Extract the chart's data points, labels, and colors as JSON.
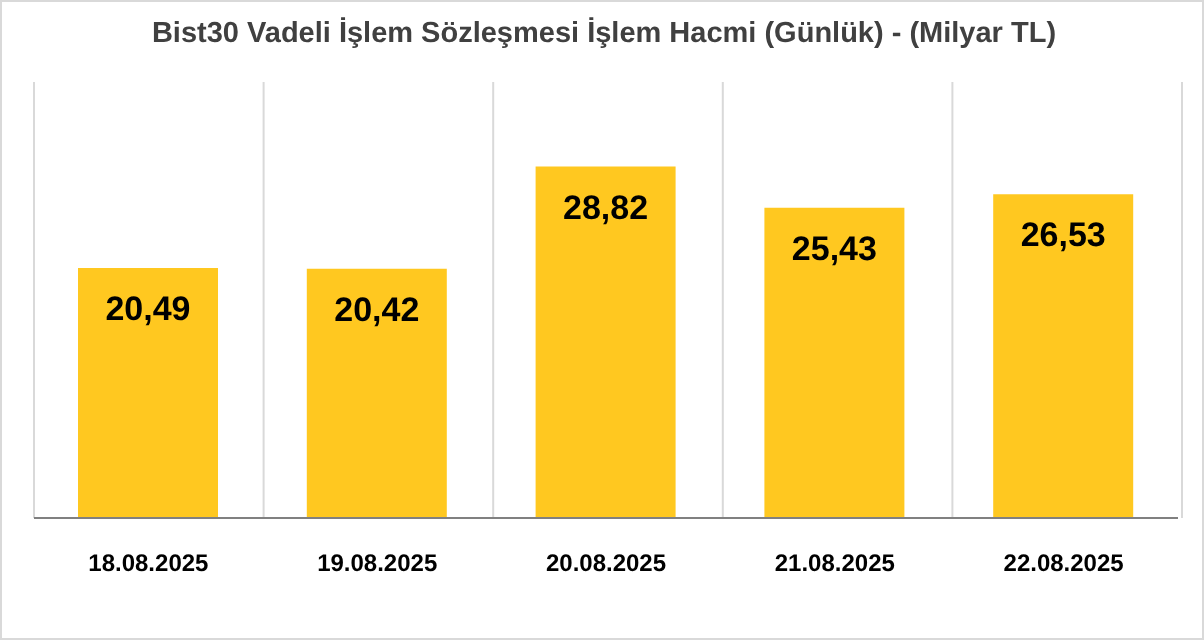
{
  "chart_data": {
    "type": "bar",
    "title": "Bist30 Vadeli İşlem Sözleşmesi İşlem Hacmi (Günlük) - (Milyar TL)",
    "categories": [
      "18.08.2025",
      "19.08.2025",
      "20.08.2025",
      "21.08.2025",
      "22.08.2025"
    ],
    "values": [
      20.49,
      20.42,
      28.82,
      25.43,
      26.53
    ],
    "value_labels": [
      "20,49",
      "20,42",
      "28,82",
      "25,43",
      "26,53"
    ],
    "color": "#ffc820",
    "grid": "x"
  }
}
